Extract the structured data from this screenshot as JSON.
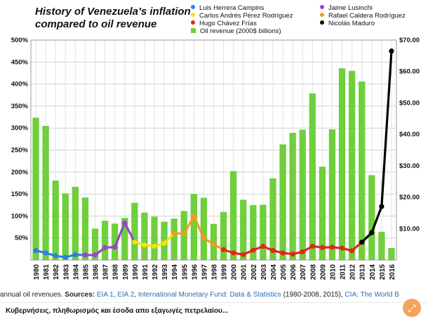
{
  "title_lines": [
    "History of Venezuela’s inflation",
    "compared to oil revenue"
  ],
  "legend": [
    {
      "label": "Luis Herrera Campins",
      "color": "#2f7fe0",
      "shape": "dot"
    },
    {
      "label": "Jaime Lusinchi",
      "color": "#9b44c7",
      "shape": "dot"
    },
    {
      "label": "Carlos Andrés Pérez Rodríguez",
      "color": "#f5e400",
      "shape": "dot"
    },
    {
      "label": "Rafael Caldera Rodríguez",
      "color": "#f59a23",
      "shape": "dot"
    },
    {
      "label": "Hugo Chávez Frías",
      "color": "#e2261c",
      "shape": "dot"
    },
    {
      "label": "Nicolás Maduro",
      "color": "#000000",
      "shape": "dot"
    },
    {
      "label": "Oil revenue (2000$ billions)",
      "color": "#6fcf3c",
      "shape": "square"
    }
  ],
  "sources": {
    "prefix": "annual oil revenues. ",
    "label": "Sources:",
    "link1": "EIA 1",
    "sep1": ", ",
    "link2": "EIA 2",
    "sep2": ", ",
    "link3": "International Monetary Fund: Data & Statistics",
    "mid": " (1980-2008, 2015), ",
    "link4": "CIA: The World B"
  },
  "caption": "Κυβερνήσεις, πληθωρισμός και έσοδα απο εξαγωγές πετρελαίου...",
  "expand_icon": "⤢",
  "chart_data": {
    "type": "bar",
    "title": "History of Venezuela’s inflation compared to oil revenue",
    "categories": [
      "1980",
      "1981",
      "1982",
      "1983",
      "1984",
      "1985",
      "1986",
      "1987",
      "1988",
      "1989",
      "1990",
      "1991",
      "1992",
      "1993",
      "1994",
      "1995",
      "1996",
      "1997",
      "1998",
      "1999",
      "2000",
      "2001",
      "2002",
      "2003",
      "2004",
      "2005",
      "2006",
      "2007",
      "2008",
      "2009",
      "2010",
      "2011",
      "2012",
      "2013",
      "2014",
      "2015",
      "2016"
    ],
    "y_left": {
      "min": 0,
      "max": 500,
      "ticks": [
        50,
        100,
        150,
        200,
        250,
        300,
        350,
        400,
        450,
        500
      ],
      "tick_labels": [
        "50%",
        "100%",
        "150%",
        "200%",
        "250%",
        "300%",
        "350%",
        "400%",
        "450%",
        "500%"
      ]
    },
    "y_right": {
      "min": 0,
      "max": 70,
      "ticks": [
        10,
        20,
        30,
        40,
        50,
        60,
        70
      ],
      "tick_labels": [
        "$10.00",
        "$20.00",
        "$30.00",
        "$40.00",
        "$50.00",
        "$60.00",
        "$70.00"
      ]
    },
    "grid": true,
    "legend_position": "top-right",
    "oil_revenue": {
      "name": "Oil revenue (2000$ billions)",
      "color": "#6fcf3c",
      "values": [
        45.3,
        42.7,
        25.3,
        21.2,
        23.3,
        19.9,
        10.0,
        12.5,
        11.6,
        13.4,
        18.2,
        15.1,
        13.8,
        12.2,
        13.2,
        15.6,
        21.0,
        19.8,
        11.5,
        15.3,
        28.3,
        19.2,
        17.5,
        17.6,
        26.0,
        36.8,
        40.5,
        41.5,
        53.0,
        29.7,
        41.6,
        61.0,
        60.2,
        56.8,
        27.0,
        9.0,
        3.8
      ]
    },
    "inflation_series": [
      {
        "name": "Luis Herrera Campins",
        "color": "#2f7fe0",
        "x": [
          "1980",
          "1981",
          "1982",
          "1983",
          "1984",
          "1985"
        ],
        "values": [
          21.5,
          16.2,
          9.6,
          6.3,
          12.2,
          11.4
        ]
      },
      {
        "name": "Jaime Lusinchi",
        "color": "#9b44c7",
        "x": [
          "1985",
          "1986",
          "1987",
          "1988",
          "1989",
          "1990"
        ],
        "values": [
          11.4,
          11.5,
          28.1,
          29.5,
          84.5,
          40.7
        ]
      },
      {
        "name": "Carlos Andrés Pérez Rodríguez",
        "color": "#f5e400",
        "x": [
          "1990",
          "1991",
          "1992",
          "1993",
          "1994"
        ],
        "values": [
          40.7,
          34.2,
          31.4,
          38.1,
          60.8
        ]
      },
      {
        "name": "Rafael Caldera Rodríguez",
        "color": "#f59a23",
        "x": [
          "1994",
          "1995",
          "1996",
          "1997",
          "1998",
          "1999"
        ],
        "values": [
          60.8,
          59.9,
          99.9,
          50.0,
          35.8,
          23.6
        ]
      },
      {
        "name": "Hugo Chávez Frías",
        "color": "#e2261c",
        "x": [
          "1999",
          "2000",
          "2001",
          "2002",
          "2003",
          "2004",
          "2005",
          "2006",
          "2007",
          "2008",
          "2009",
          "2010",
          "2011",
          "2012",
          "2013"
        ],
        "values": [
          23.6,
          16.2,
          12.5,
          22.4,
          31.1,
          21.7,
          16.0,
          13.7,
          18.7,
          31.4,
          28.6,
          29.1,
          27.1,
          21.1,
          40.6
        ]
      },
      {
        "name": "Nicolás Maduro",
        "color": "#000000",
        "x": [
          "2013",
          "2014",
          "2015",
          "2016"
        ],
        "values": [
          40.6,
          62.2,
          121.7,
          475.0
        ]
      }
    ]
  }
}
